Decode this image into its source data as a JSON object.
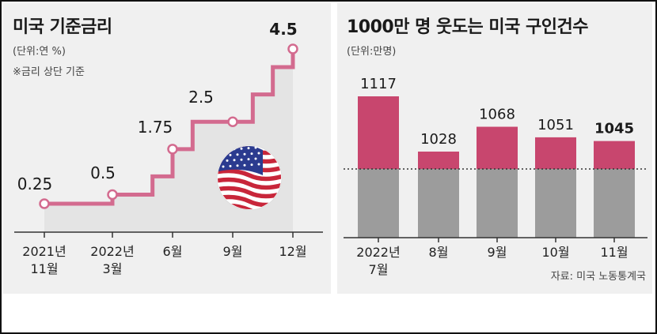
{
  "left_chart": {
    "title": "미국 기준금리",
    "unit": "(단위:연 %)",
    "note": "※금리 상단 기준",
    "chart_data": {
      "type": "line",
      "title": "미국 기준금리",
      "unit": "연 %",
      "note": "금리 상단 기준",
      "points": [
        {
          "date": "2021-11",
          "value": 0.25,
          "label": "0.25"
        },
        {
          "date": "2022-03",
          "value": 0.5,
          "label": "0.5"
        },
        {
          "date": "2022-04",
          "value": 0.5
        },
        {
          "date": "2022-05",
          "value": 1.0
        },
        {
          "date": "2022-06",
          "value": 1.75,
          "label": "1.75"
        },
        {
          "date": "2022-07",
          "value": 2.5
        },
        {
          "date": "2022-09",
          "value": 2.5,
          "label": "2.5"
        },
        {
          "date": "2022-10",
          "value": 3.25
        },
        {
          "date": "2022-11",
          "value": 4.0
        },
        {
          "date": "2022-12",
          "value": 4.5,
          "label": "4.5"
        }
      ],
      "x_ticks": [
        {
          "date": "2021-11",
          "line1": "2021년",
          "line2": "11월"
        },
        {
          "date": "2022-03",
          "line1": "2022년",
          "line2": "3월"
        },
        {
          "date": "2022-06",
          "line1": "6월",
          "line2": ""
        },
        {
          "date": "2022-09",
          "line1": "9월",
          "line2": ""
        },
        {
          "date": "2022-12",
          "line1": "12월",
          "line2": ""
        }
      ]
    }
  },
  "right_chart": {
    "title": "1000만 명 웃도는 미국 구인건수",
    "unit": "(단위:만명)",
    "source": "자료: 미국 노동통계국",
    "chart_data": {
      "type": "bar",
      "title": "1000만 명 웃도는 미국 구인건수",
      "unit": "만명",
      "categories": [
        "2022년 7월",
        "8월",
        "9월",
        "10월",
        "11월"
      ],
      "category_labels": [
        {
          "line1": "2022년",
          "line2": "7월"
        },
        {
          "line1": "8월",
          "line2": ""
        },
        {
          "line1": "9월",
          "line2": ""
        },
        {
          "line1": "10월",
          "line2": ""
        },
        {
          "line1": "11월",
          "line2": ""
        }
      ],
      "values": [
        1117,
        1028,
        1068,
        1051,
        1045
      ],
      "value_labels": [
        "1117",
        "1028",
        "1068",
        "1051",
        "1045"
      ],
      "reference_line": 1000,
      "highlight_last": true
    }
  },
  "colors": {
    "line": "#d36b8f",
    "bar_top": "#c8466e",
    "bar_base": "#9c9c9c",
    "area": "#e4e4e4",
    "panel_bg": "#f0f0f0"
  }
}
